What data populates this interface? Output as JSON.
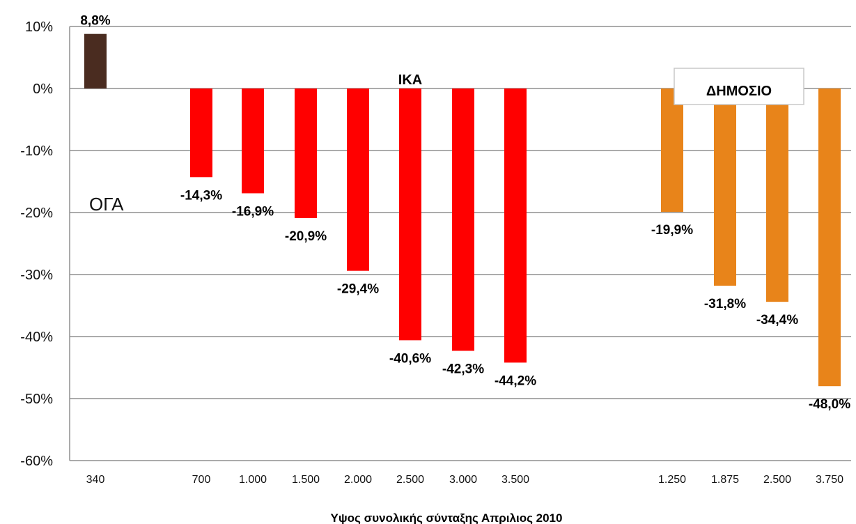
{
  "chart_data": {
    "type": "bar",
    "title": "",
    "xlabel": "Υψος συνολικής σύνταξης Απριλιος 2010",
    "ylabel": "",
    "ylim": [
      -60,
      10
    ],
    "y_ticks": [
      "10%",
      "0%",
      "-10%",
      "-20%",
      "-30%",
      "-40%",
      "-50%",
      "-60%"
    ],
    "grid": true,
    "groups": [
      {
        "name": "ΟΓΑ",
        "color": "#4a2c20",
        "categories": [
          "340"
        ],
        "values": [
          8.8
        ],
        "labels": [
          "8,8%"
        ]
      },
      {
        "name": "ΙΚΑ",
        "color": "#ff0000",
        "categories": [
          "700",
          "1.000",
          "1.500",
          "2.000",
          "2.500",
          "3.000",
          "3.500"
        ],
        "values": [
          -14.3,
          -16.9,
          -20.9,
          -29.4,
          -40.6,
          -42.3,
          -44.2
        ],
        "labels": [
          "-14,3%",
          "-16,9%",
          "-20,9%",
          "-29,4%",
          "-40,6%",
          "-42,3%",
          "-44,2%"
        ]
      },
      {
        "name": "ΔΗΜΟΣΙΟ",
        "color": "#e8841a",
        "categories": [
          "1.250",
          "1.875",
          "2.500",
          "3.750"
        ],
        "values": [
          -19.9,
          -31.8,
          -34.4,
          -48.0
        ],
        "labels": [
          "-19,9%",
          "-31,8%",
          "-34,4%",
          "-48,0%"
        ]
      }
    ]
  }
}
